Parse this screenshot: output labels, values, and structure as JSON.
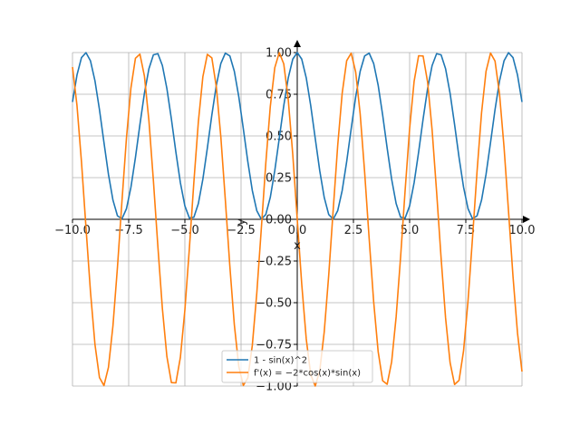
{
  "chart_data": {
    "type": "line",
    "xlabel": "x",
    "ylabel": "y",
    "xlim": [
      -10.0,
      10.0
    ],
    "ylim": [
      -1.0,
      1.0
    ],
    "grid": true,
    "legend_position": "bottom-center",
    "x_ticks": [
      "−10.0",
      "−7.5",
      "−5.0",
      "−2.5",
      "0.0",
      "2.5",
      "5.0",
      "7.5",
      "10.0"
    ],
    "y_ticks": [
      "−1.00",
      "−0.75",
      "−0.50",
      "−0.25",
      "0.00",
      "0.25",
      "0.50",
      "0.75",
      "1.00"
    ],
    "x_tick_values": [
      -10,
      -7.5,
      -5,
      -2.5,
      0,
      2.5,
      5,
      7.5,
      10
    ],
    "y_tick_values": [
      -1,
      -0.75,
      -0.5,
      -0.25,
      0,
      0.25,
      0.5,
      0.75,
      1
    ],
    "sample_step": 0.2,
    "series": [
      {
        "name": "1 - sin(x)^2",
        "color": "#1f77b4",
        "function": "1 - sin(x)^2"
      },
      {
        "name": "f'(x) = −2*cos(x)*sin(x)",
        "color": "#ff7f0e",
        "function": "-2*cos(x)*sin(x)"
      }
    ]
  }
}
